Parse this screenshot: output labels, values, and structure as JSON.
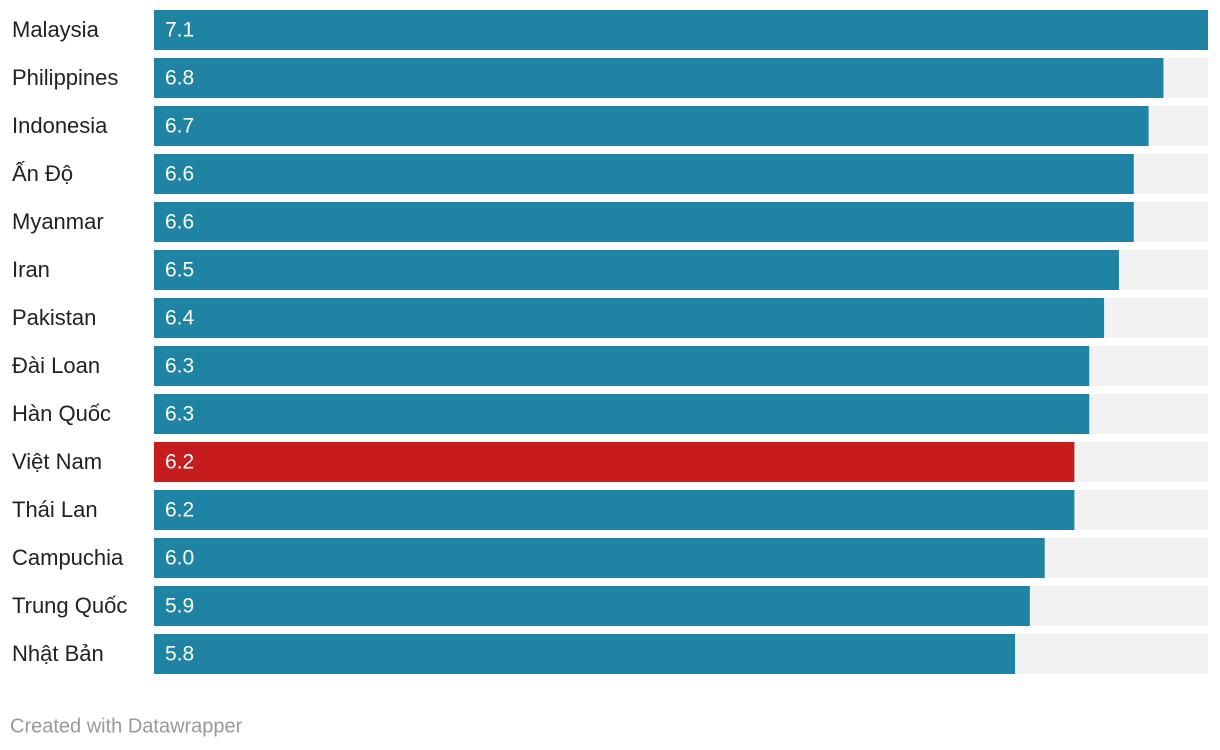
{
  "chart_data": {
    "type": "bar",
    "categories": [
      "Malaysia",
      "Philippines",
      "Indonesia",
      "Ấn Độ",
      "Myanmar",
      "Iran",
      "Pakistan",
      "Đài Loan",
      "Hàn Quốc",
      "Việt Nam",
      "Thái Lan",
      "Campuchia",
      "Trung Quốc",
      "Nhật Bản"
    ],
    "values": [
      7.1,
      6.8,
      6.7,
      6.6,
      6.6,
      6.5,
      6.4,
      6.3,
      6.3,
      6.2,
      6.2,
      6.0,
      5.9,
      5.8
    ],
    "value_labels": [
      "7.1",
      "6.8",
      "6.7",
      "6.6",
      "6.6",
      "6.5",
      "6.4",
      "6.3",
      "6.3",
      "6.2",
      "6.2",
      "6.0",
      "5.9",
      "5.8"
    ],
    "colors": [
      "#1f83a3",
      "#1f83a3",
      "#1f83a3",
      "#1f83a3",
      "#1f83a3",
      "#1f83a3",
      "#1f83a3",
      "#1f83a3",
      "#1f83a3",
      "#c71c1e",
      "#1f83a3",
      "#1f83a3",
      "#1f83a3",
      "#1f83a3"
    ],
    "track_color": "#f2f2f2",
    "footer": "Created with Datawrapper"
  }
}
